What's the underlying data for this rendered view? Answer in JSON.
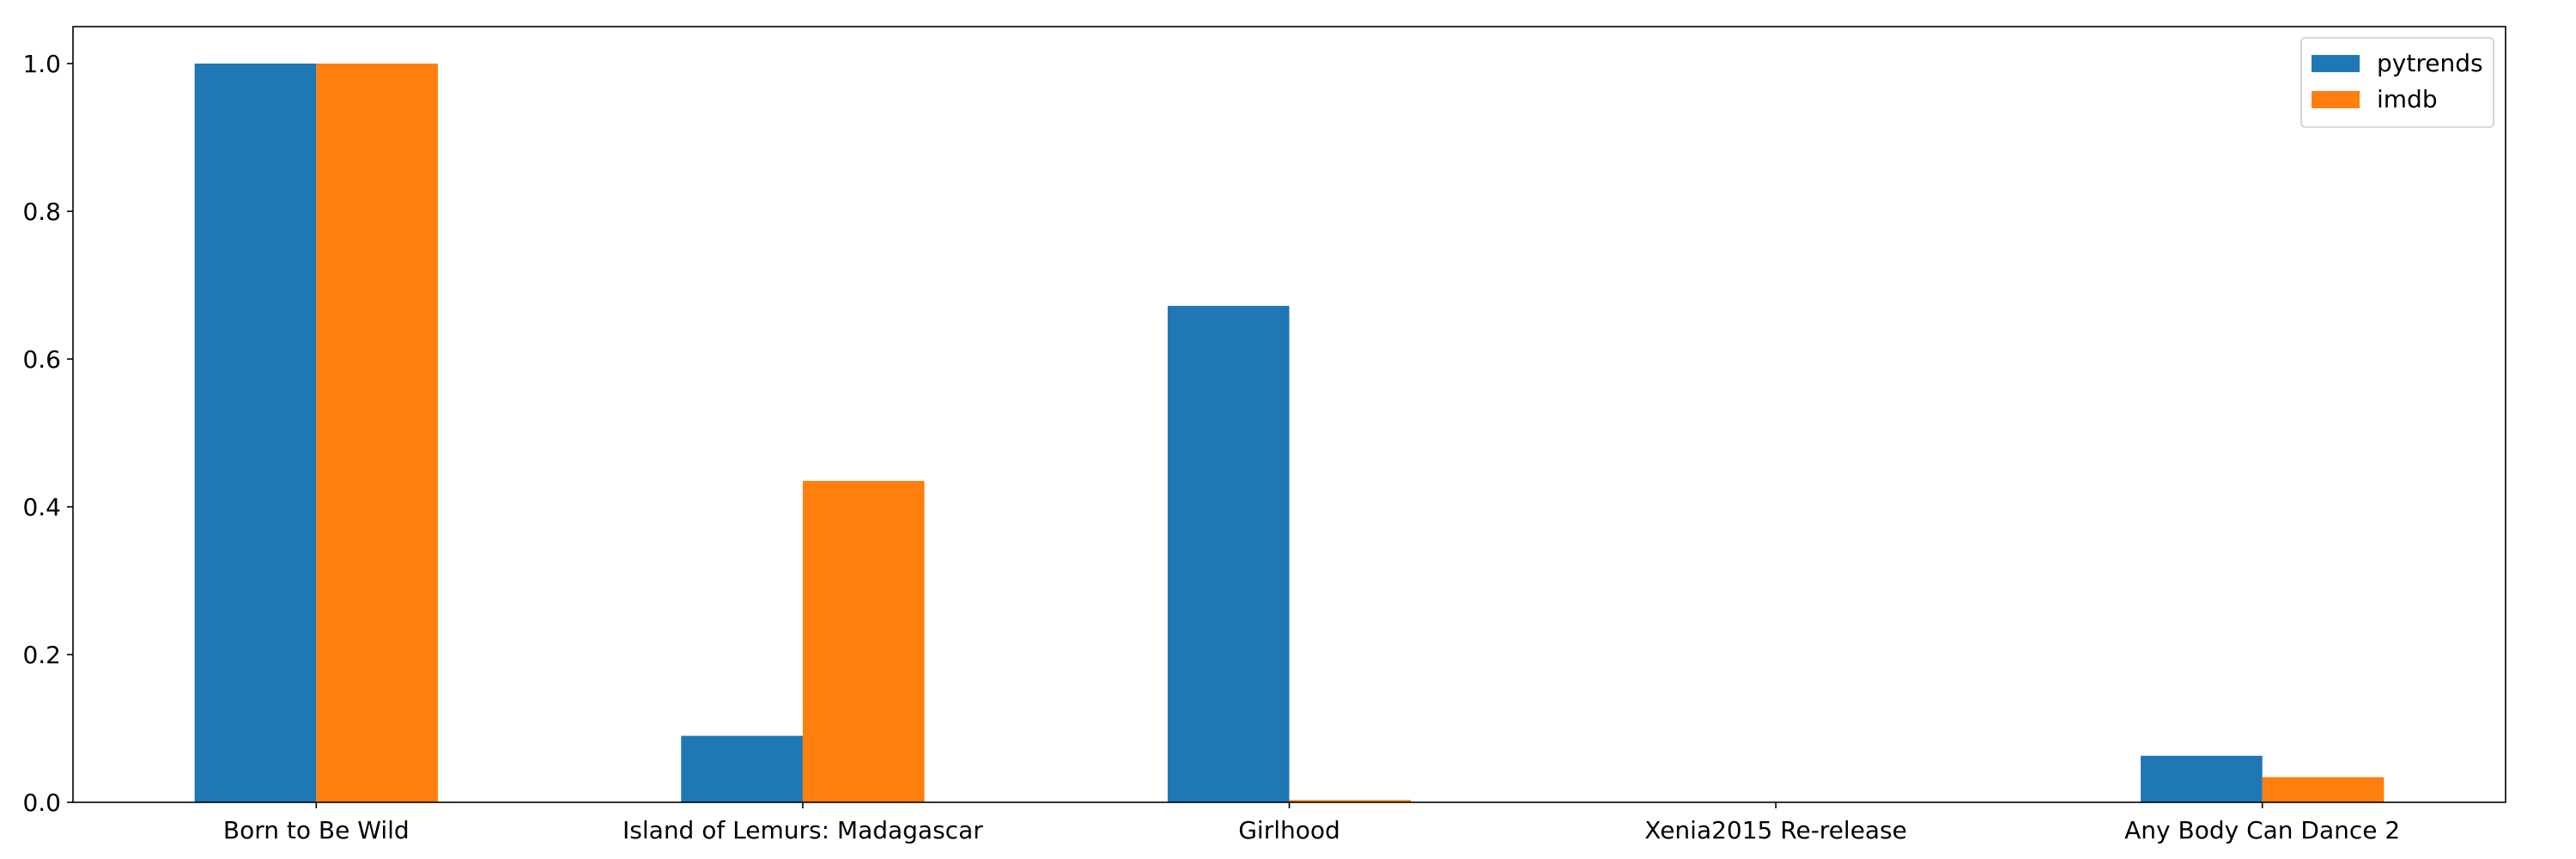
{
  "chart_data": {
    "type": "bar",
    "title": "",
    "xlabel": "",
    "ylabel": "",
    "categories": [
      "Born to Be Wild",
      "Island of Lemurs: Madagascar",
      "Girlhood",
      "Xenia2015 Re-release",
      "Any Body Can Dance 2"
    ],
    "series": [
      {
        "name": "pytrends",
        "color": "#1f77b4",
        "values": [
          1.0,
          0.09,
          0.672,
          0.0,
          0.063
        ]
      },
      {
        "name": "imdb",
        "color": "#ff7f0e",
        "values": [
          1.0,
          0.435,
          0.003,
          0.0,
          0.034
        ]
      }
    ],
    "yticks": [
      0.0,
      0.2,
      0.4,
      0.6,
      0.8,
      1.0
    ],
    "ytick_labels": [
      "0.0",
      "0.2",
      "0.4",
      "0.6",
      "0.8",
      "1.0"
    ],
    "ylim": [
      0,
      1.05
    ],
    "grid": false,
    "legend_position": "top-right"
  }
}
